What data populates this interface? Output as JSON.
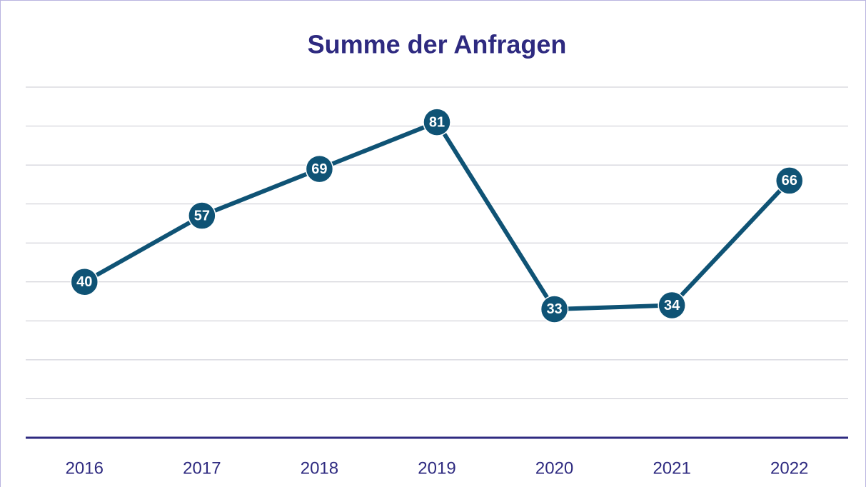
{
  "chart_data": {
    "type": "line",
    "title": "Summe der Anfragen",
    "categories": [
      "2016",
      "2017",
      "2018",
      "2019",
      "2020",
      "2021",
      "2022"
    ],
    "series": [
      {
        "name": "Summe der Anfragen",
        "color": "#0f5375",
        "values": [
          40,
          57,
          69,
          81,
          33,
          34,
          66
        ]
      }
    ],
    "ylim": [
      0,
      90
    ],
    "yticks": [
      0,
      10,
      20,
      30,
      40,
      50,
      60,
      70,
      80,
      90
    ],
    "ytick_labels": false,
    "grid": true,
    "legend": false
  }
}
